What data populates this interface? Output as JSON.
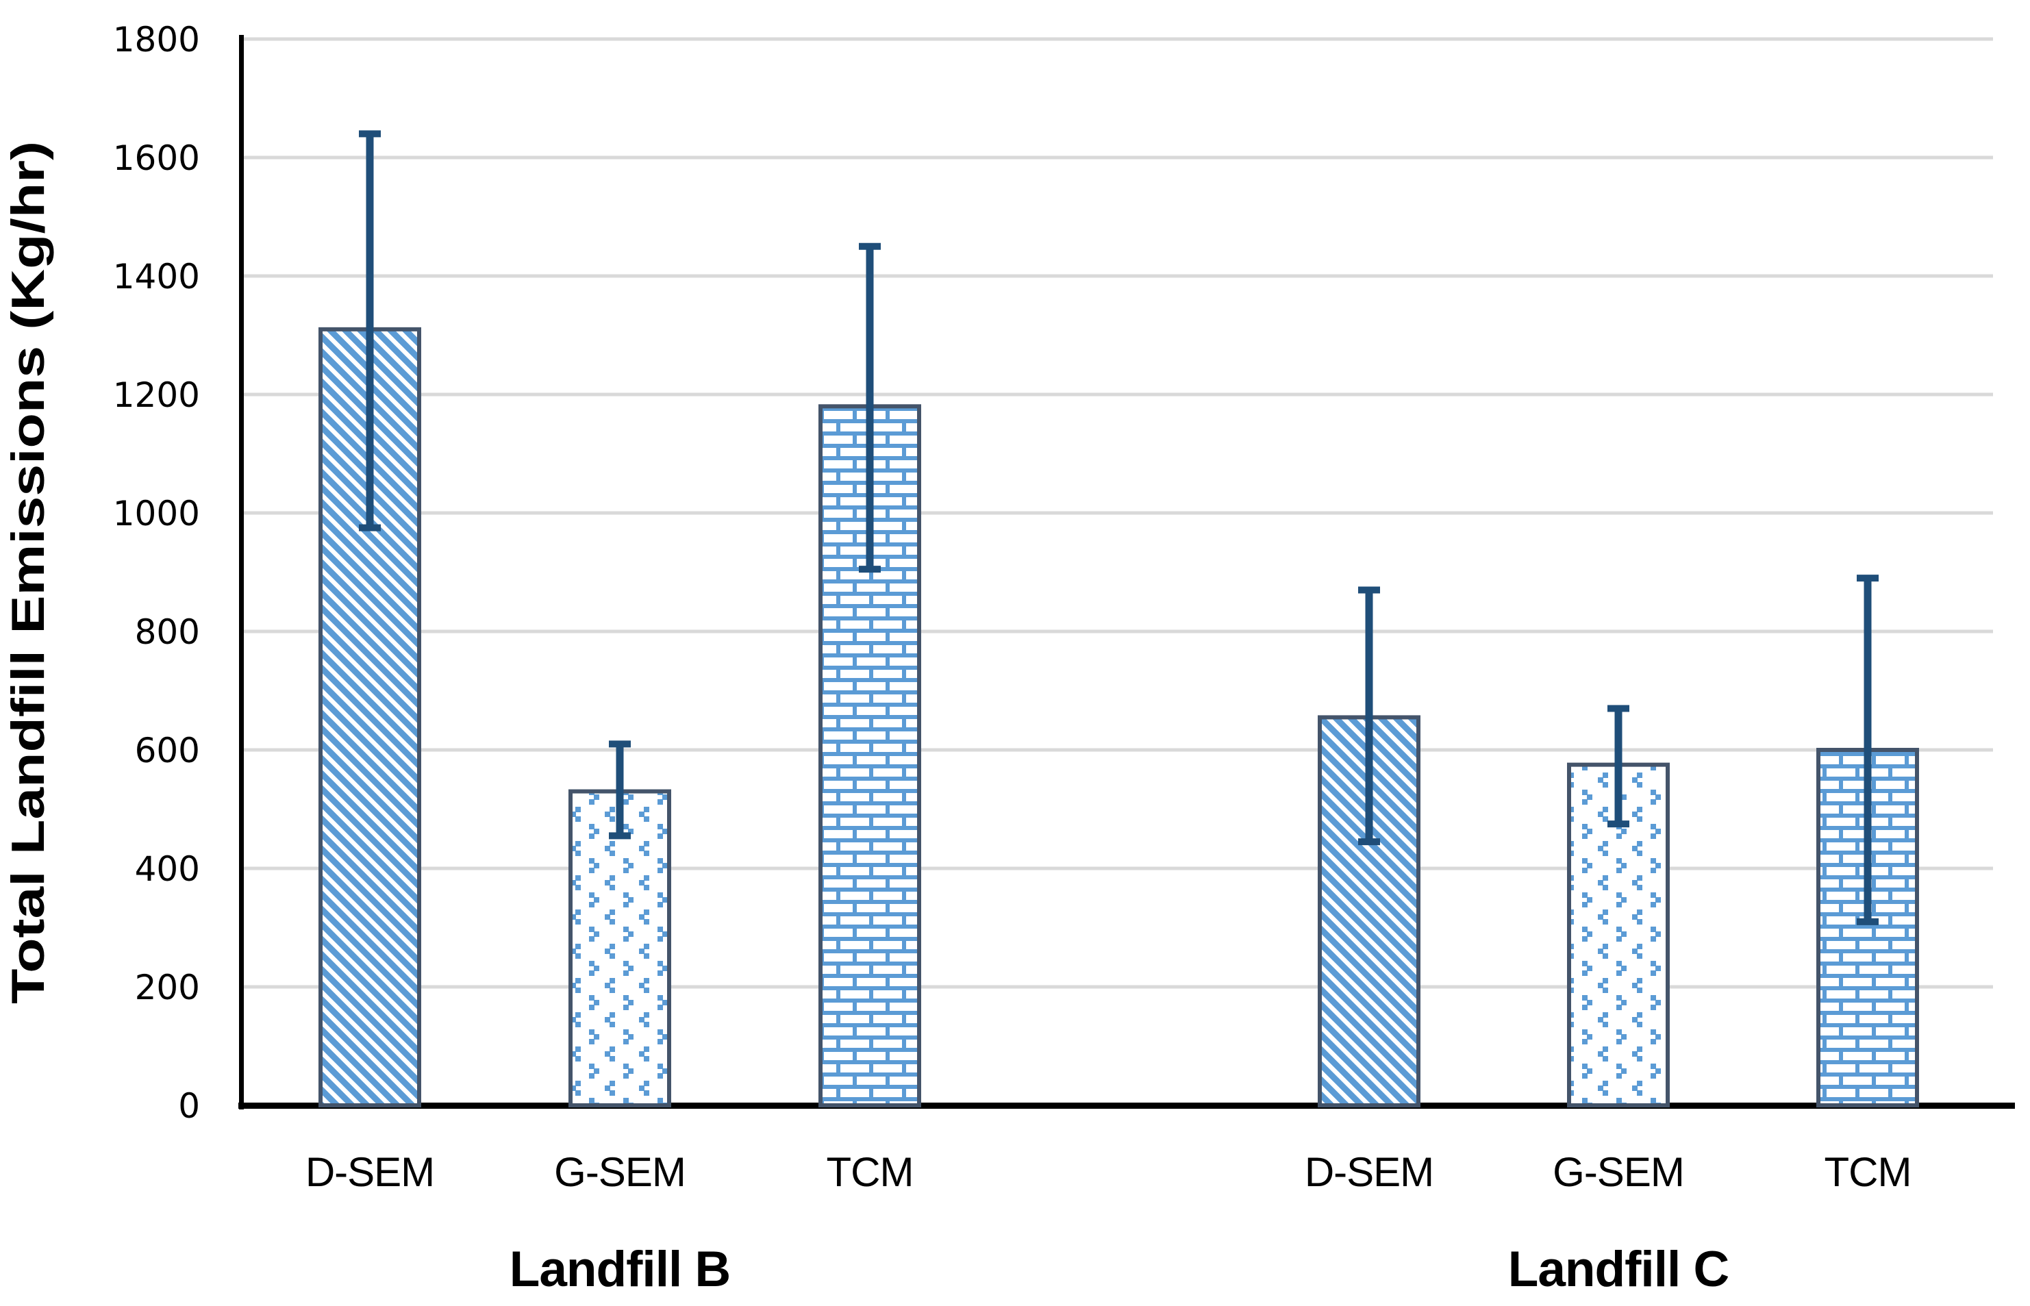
{
  "chart_data": {
    "type": "bar",
    "title": "",
    "xlabel": "",
    "ylabel": "Total Landfill Emissions (Kg/hr)",
    "ylim": [
      0,
      1800
    ],
    "ytick_interval": 200,
    "yticks": [
      0,
      200,
      400,
      600,
      800,
      1000,
      1200,
      1400,
      1600,
      1800
    ],
    "grid": true,
    "legend_position": "none",
    "error_bars": true,
    "groups": [
      {
        "label": "Landfill B",
        "bars": [
          {
            "category": "D-SEM",
            "value": 1310,
            "error_low": 975,
            "error_high": 1640,
            "pattern": "wide-downward-diagonal"
          },
          {
            "category": "G-SEM",
            "value": 530,
            "error_low": 455,
            "error_high": 610,
            "pattern": "divot"
          },
          {
            "category": "TCM",
            "value": 1180,
            "error_low": 905,
            "error_high": 1450,
            "pattern": "brick"
          }
        ]
      },
      {
        "label": "Landfill C",
        "bars": [
          {
            "category": "D-SEM",
            "value": 655,
            "error_low": 445,
            "error_high": 870,
            "pattern": "wide-downward-diagonal"
          },
          {
            "category": "G-SEM",
            "value": 575,
            "error_low": 475,
            "error_high": 670,
            "pattern": "divot"
          },
          {
            "category": "TCM",
            "value": 600,
            "error_low": 310,
            "error_high": 890,
            "pattern": "brick"
          }
        ]
      }
    ],
    "colors": {
      "pattern_foreground": "#5B9BD5",
      "pattern_background": "#FFFFFF",
      "bar_border": "#44546A",
      "error_bar": "#1F4E79",
      "gridline": "#D9D9D9",
      "axis": "#000000",
      "text": "#000000",
      "background": "#FFFFFF"
    }
  }
}
